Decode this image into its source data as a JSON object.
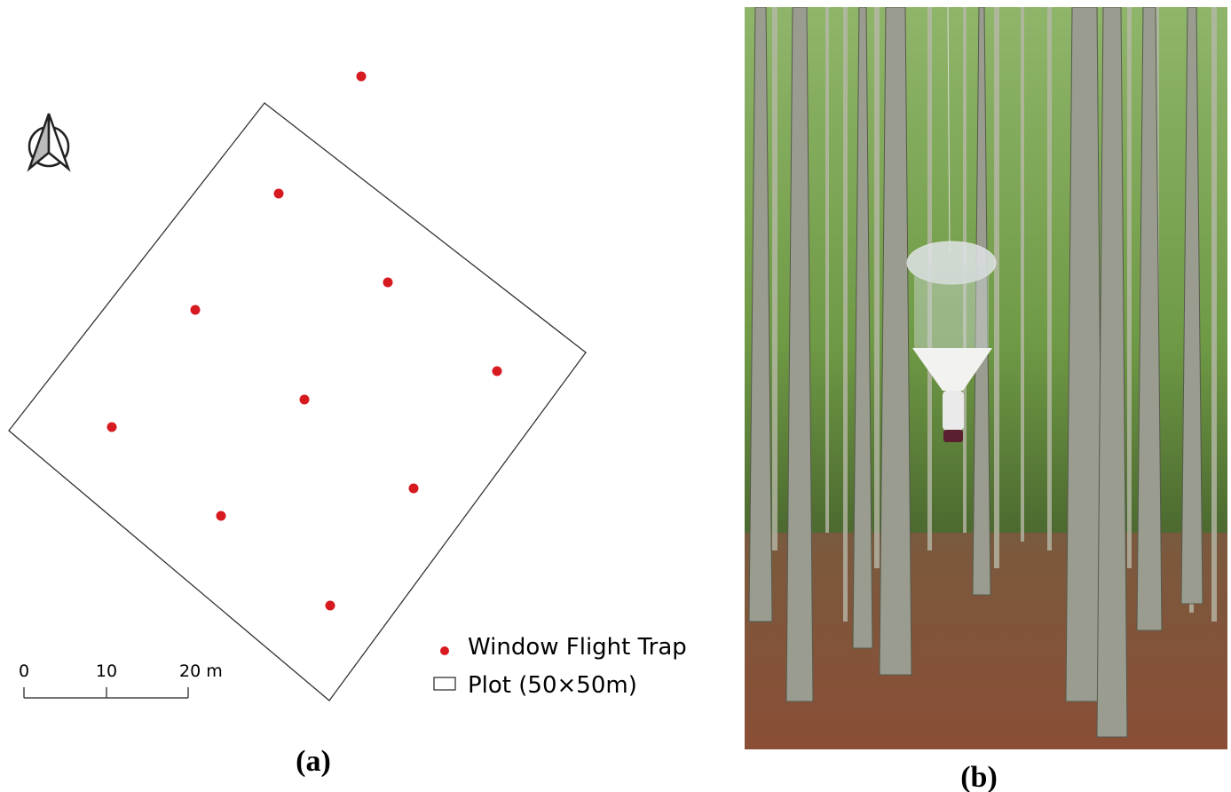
{
  "panel_a": {
    "label": "(a)",
    "scale_bar": {
      "ticks": [
        "0",
        "10",
        "20 m"
      ]
    },
    "legend": {
      "items": [
        "Window Flight Trap",
        "Plot (50×50m)"
      ]
    }
  },
  "panel_b": {
    "label": "(b)"
  }
}
